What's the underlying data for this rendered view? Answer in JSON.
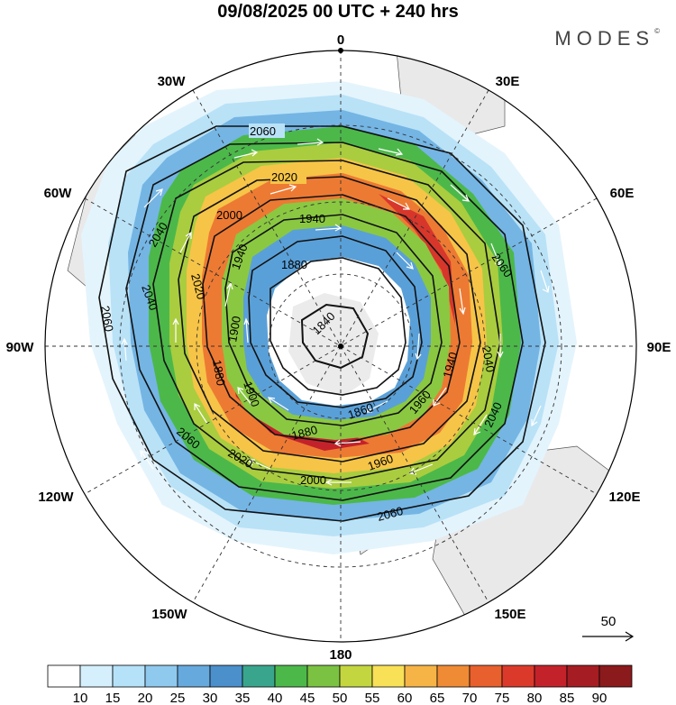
{
  "title": "09/08/2025  00 UTC  + 240 hrs",
  "brand": "MODES",
  "brand_mark": "©",
  "longitude_labels": [
    "0",
    "30E",
    "60E",
    "90E",
    "120E",
    "150E",
    "180",
    "150W",
    "120W",
    "90W",
    "60W",
    "30W"
  ],
  "contour_labels": [
    "2060",
    "2040",
    "2020",
    "2000",
    "1960",
    "1940",
    "1900",
    "1880",
    "1860",
    "1840"
  ],
  "vector_reference": {
    "label": "50",
    "unit_arrow": "reference-vector"
  },
  "colorbar": {
    "labels": [
      "10",
      "15",
      "20",
      "25",
      "30",
      "35",
      "40",
      "45",
      "50",
      "55",
      "60",
      "65",
      "70",
      "75",
      "80",
      "85",
      "90"
    ],
    "colors": [
      "#ffffff",
      "#d5f0fc",
      "#b5e2f8",
      "#8fc9ee",
      "#66a9dd",
      "#4b8fcb",
      "#3aa58d",
      "#4cb84a",
      "#7cc242",
      "#c4d63f",
      "#f8e157",
      "#f6b446",
      "#f08b35",
      "#e8602d",
      "#db3a2b",
      "#c4222a",
      "#a51d22",
      "#8b1a1d"
    ]
  }
}
